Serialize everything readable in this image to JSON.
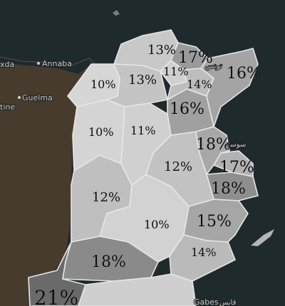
{
  "map": {
    "colors": {
      "sea": "#1f2a2c",
      "land_algeria": "#463b2c",
      "border": "#e6e6e6",
      "label": "#0d0d0d"
    },
    "cities": [
      {
        "id": "skikda",
        "name": "xda"
      },
      {
        "id": "annaba",
        "name": "Annaba"
      },
      {
        "id": "guelma",
        "name": "Guelma"
      },
      {
        "id": "constantine",
        "name": "tine"
      },
      {
        "id": "tunis",
        "name": "تونس"
      },
      {
        "id": "sousse",
        "name": "سوسة"
      },
      {
        "id": "gabes",
        "name": "Gabes"
      },
      {
        "id": "gabes-ar",
        "name": "قابس"
      }
    ],
    "regions": [
      {
        "id": "bizerte",
        "label": "13%",
        "value": 13,
        "shade": "#c8c8c8"
      },
      {
        "id": "ariana",
        "label": "17%",
        "value": 17,
        "shade": "#9a9a9a"
      },
      {
        "id": "manouba",
        "label": "11%",
        "value": 11,
        "shade": "#d0d0d0"
      },
      {
        "id": "ben-arous",
        "label": "14%",
        "value": 14,
        "shade": "#bdbdbd"
      },
      {
        "id": "nabeul",
        "label": "16%",
        "value": 16,
        "shade": "#a4a4a4"
      },
      {
        "id": "jendouba",
        "label": "10%",
        "value": 10,
        "shade": "#d6d6d6"
      },
      {
        "id": "beja",
        "label": "13%",
        "value": 13,
        "shade": "#c4c4c4"
      },
      {
        "id": "zaghouan",
        "label": "16%",
        "value": 16,
        "shade": "#a0a0a0"
      },
      {
        "id": "kef",
        "label": "10%",
        "value": 10,
        "shade": "#d4d4d4"
      },
      {
        "id": "siliana",
        "label": "11%",
        "value": 11,
        "shade": "#d0d0d0"
      },
      {
        "id": "sousse",
        "label": "18%",
        "value": 18,
        "shade": "#a8a8a8"
      },
      {
        "id": "monastir",
        "label": "17%",
        "value": 17,
        "shade": "#b2b2b2"
      },
      {
        "id": "kairouan",
        "label": "12%",
        "value": 12,
        "shade": "#c2c2c2"
      },
      {
        "id": "mahdia",
        "label": "18%",
        "value": 18,
        "shade": "#8e8e8e"
      },
      {
        "id": "kasserine",
        "label": "12%",
        "value": 12,
        "shade": "#bfbfbf"
      },
      {
        "id": "sidi-bouzid",
        "label": "10%",
        "value": 10,
        "shade": "#d2d2d2"
      },
      {
        "id": "sfax",
        "label": "15%",
        "value": 15,
        "shade": "#a6a6a6"
      },
      {
        "id": "gafsa",
        "label": "18%",
        "value": 18,
        "shade": "#8a8a8a"
      },
      {
        "id": "gabes-region",
        "label": "14%",
        "value": 14,
        "shade": "#bababa"
      },
      {
        "id": "tozeur",
        "label": "21%",
        "value": 21,
        "shade": "#6a6a6a"
      }
    ]
  }
}
